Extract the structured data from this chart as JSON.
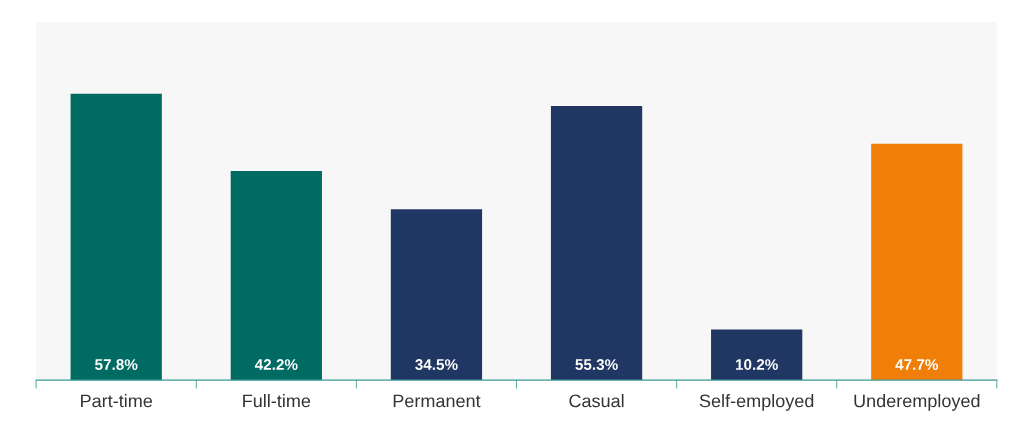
{
  "chart_data": {
    "type": "bar",
    "categories": [
      "Part-time",
      "Full-time",
      "Permanent",
      "Casual",
      "Self-employed",
      "Underemployed"
    ],
    "values": [
      57.8,
      42.2,
      34.5,
      55.3,
      10.2,
      47.7
    ],
    "colors": [
      "#006b63",
      "#006b63",
      "#213763",
      "#213763",
      "#213763",
      "#f07f09"
    ],
    "value_labels": [
      "57.8%",
      "42.2%",
      "34.5%",
      "55.3%",
      "10.2%",
      "47.7%"
    ],
    "grid": false,
    "legend": false
  }
}
